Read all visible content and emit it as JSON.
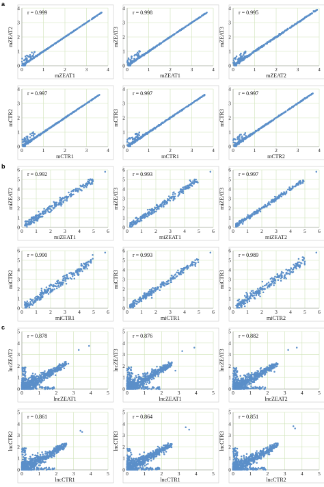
{
  "figure": {
    "panel_labels": [
      "a",
      "b",
      "c"
    ]
  },
  "colors": {
    "points": "#5b8fc9",
    "grid": "#cfe3b8",
    "axis": "#888888"
  },
  "chart_data": [
    {
      "type": "scatter",
      "group": "a",
      "xlabel": "mZEAT1",
      "ylabel": "mZEAT2",
      "r_label": "r = 0.999",
      "xlim": [
        0,
        4
      ],
      "ylim": [
        0,
        4
      ],
      "xticks": [
        0,
        1,
        2,
        3,
        4
      ],
      "yticks": [
        0,
        1,
        2,
        3,
        4
      ],
      "grid": true,
      "pattern": "m",
      "r": 0.999,
      "xmax_point": 3.7
    },
    {
      "type": "scatter",
      "group": "a",
      "xlabel": "mZEAT1",
      "ylabel": "mZEAT3",
      "r_label": "r = 0.998",
      "xlim": [
        0,
        4
      ],
      "ylim": [
        0,
        4
      ],
      "xticks": [
        0,
        1,
        2,
        3,
        4
      ],
      "yticks": [
        0,
        1,
        2,
        3,
        4
      ],
      "grid": true,
      "pattern": "m",
      "r": 0.998,
      "xmax_point": 3.7
    },
    {
      "type": "scatter",
      "group": "a",
      "xlabel": "mZEAT2",
      "ylabel": "mZEAT3",
      "r_label": "r = 0.995",
      "xlim": [
        0,
        4
      ],
      "ylim": [
        0,
        4
      ],
      "xticks": [
        0,
        1,
        2,
        3,
        4
      ],
      "yticks": [
        0,
        1,
        2,
        3,
        4
      ],
      "grid": true,
      "pattern": "m",
      "r": 0.995,
      "xmax_point": 3.9
    },
    {
      "type": "scatter",
      "group": "a",
      "xlabel": "mCTR1",
      "ylabel": "mCTR2",
      "r_label": "r = 0.997",
      "xlim": [
        0,
        4
      ],
      "ylim": [
        0,
        4
      ],
      "xticks": [
        0,
        1,
        2,
        3,
        4
      ],
      "yticks": [
        0,
        1,
        2,
        3,
        4
      ],
      "grid": true,
      "pattern": "m",
      "r": 0.997,
      "xmax_point": 3.6
    },
    {
      "type": "scatter",
      "group": "a",
      "xlabel": "mCTR1",
      "ylabel": "mCTR3",
      "r_label": "r = 0.997",
      "xlim": [
        0,
        4
      ],
      "ylim": [
        0,
        4
      ],
      "xticks": [
        0,
        1,
        2,
        3,
        4
      ],
      "yticks": [
        0,
        1,
        2,
        3,
        4
      ],
      "grid": true,
      "pattern": "m",
      "r": 0.997,
      "xmax_point": 3.6
    },
    {
      "type": "scatter",
      "group": "a",
      "xlabel": "mCTR2",
      "ylabel": "mCTR3",
      "r_label": "r = 0.997",
      "xlim": [
        0,
        4
      ],
      "ylim": [
        0,
        4
      ],
      "xticks": [
        0,
        1,
        2,
        3,
        4
      ],
      "yticks": [
        0,
        1,
        2,
        3,
        4
      ],
      "grid": true,
      "pattern": "m",
      "r": 0.997,
      "xmax_point": 3.7
    },
    {
      "type": "scatter",
      "group": "b",
      "xlabel": "miZEAT1",
      "ylabel": "miZEAT2",
      "r_label": "r = 0.992",
      "xlim": [
        0,
        6
      ],
      "ylim": [
        0,
        6
      ],
      "xticks": [
        0,
        1,
        2,
        3,
        4,
        5,
        6
      ],
      "yticks": [
        0,
        1,
        2,
        3,
        4,
        5,
        6
      ],
      "grid": true,
      "pattern": "mi",
      "r": 0.992,
      "xmax_point": 5.8
    },
    {
      "type": "scatter",
      "group": "b",
      "xlabel": "miZEAT1",
      "ylabel": "miZEAT3",
      "r_label": "r = 0.993",
      "xlim": [
        0,
        6
      ],
      "ylim": [
        0,
        6
      ],
      "xticks": [
        0,
        1,
        2,
        3,
        4,
        5,
        6
      ],
      "yticks": [
        0,
        1,
        2,
        3,
        4,
        5,
        6
      ],
      "grid": true,
      "pattern": "mi",
      "r": 0.993,
      "xmax_point": 5.8
    },
    {
      "type": "scatter",
      "group": "b",
      "xlabel": "miZEAT2",
      "ylabel": "miZEAT3",
      "r_label": "r = 0.997",
      "xlim": [
        0,
        6
      ],
      "ylim": [
        0,
        6
      ],
      "xticks": [
        0,
        1,
        2,
        3,
        4,
        5,
        6
      ],
      "yticks": [
        0,
        1,
        2,
        3,
        4,
        5,
        6
      ],
      "grid": true,
      "pattern": "mi",
      "r": 0.997,
      "xmax_point": 5.8
    },
    {
      "type": "scatter",
      "group": "b",
      "xlabel": "miCTR1",
      "ylabel": "miCTR2",
      "r_label": "r = 0.990",
      "xlim": [
        0,
        6
      ],
      "ylim": [
        0,
        6
      ],
      "xticks": [
        0,
        1,
        2,
        3,
        4,
        5,
        6
      ],
      "yticks": [
        0,
        1,
        2,
        3,
        4,
        5,
        6
      ],
      "grid": true,
      "pattern": "mi",
      "r": 0.99,
      "xmax_point": 5.8
    },
    {
      "type": "scatter",
      "group": "b",
      "xlabel": "miCTR1",
      "ylabel": "miCTR3",
      "r_label": "r = 0.993",
      "xlim": [
        0,
        6
      ],
      "ylim": [
        0,
        6
      ],
      "xticks": [
        0,
        1,
        2,
        3,
        4,
        5,
        6
      ],
      "yticks": [
        0,
        1,
        2,
        3,
        4,
        5,
        6
      ],
      "grid": true,
      "pattern": "mi",
      "r": 0.993,
      "xmax_point": 5.8
    },
    {
      "type": "scatter",
      "group": "b",
      "xlabel": "miCTR2",
      "ylabel": "miCTR3",
      "r_label": "r = 0.989",
      "xlim": [
        0,
        6
      ],
      "ylim": [
        0,
        6
      ],
      "xticks": [
        0,
        1,
        2,
        3,
        4,
        5,
        6
      ],
      "yticks": [
        0,
        1,
        2,
        3,
        4,
        5,
        6
      ],
      "grid": true,
      "pattern": "mi",
      "r": 0.989,
      "xmax_point": 5.8
    },
    {
      "type": "scatter",
      "group": "c",
      "xlabel": "lncZEAT1",
      "ylabel": "lncZEAT2",
      "r_label": "r = 0.878",
      "xlim": [
        0,
        5
      ],
      "ylim": [
        0,
        5
      ],
      "xticks": [
        0,
        1,
        2,
        3,
        4,
        5
      ],
      "yticks": [
        0,
        1,
        2,
        3,
        4,
        5
      ],
      "grid": true,
      "pattern": "lnc",
      "r": 0.878,
      "outliers": [
        [
          3.9,
          3.75
        ],
        [
          3.3,
          3.4
        ],
        [
          2.7,
          2.2
        ]
      ]
    },
    {
      "type": "scatter",
      "group": "c",
      "xlabel": "lncZEAT1",
      "ylabel": "lncZEAT3",
      "r_label": "r = 0.876",
      "xlim": [
        0,
        5
      ],
      "ylim": [
        0,
        5
      ],
      "xticks": [
        0,
        1,
        2,
        3,
        4,
        5
      ],
      "yticks": [
        0,
        1,
        2,
        3,
        4,
        5
      ],
      "grid": true,
      "pattern": "lnc",
      "r": 0.876,
      "outliers": [
        [
          3.9,
          3.6
        ],
        [
          3.2,
          3.3
        ],
        [
          2.8,
          1.6
        ]
      ]
    },
    {
      "type": "scatter",
      "group": "c",
      "xlabel": "lncZEAT2",
      "ylabel": "lncZEAT3",
      "r_label": "r = 0.882",
      "xlim": [
        0,
        5
      ],
      "ylim": [
        0,
        5
      ],
      "xticks": [
        0,
        1,
        2,
        3,
        4,
        5
      ],
      "yticks": [
        0,
        1,
        2,
        3,
        4,
        5
      ],
      "grid": true,
      "pattern": "lnc",
      "r": 0.882,
      "outliers": [
        [
          3.7,
          3.6
        ],
        [
          3.2,
          3.4
        ],
        [
          2.4,
          1.5
        ]
      ]
    },
    {
      "type": "scatter",
      "group": "c",
      "xlabel": "lncCTR1",
      "ylabel": "lncCTR2",
      "r_label": "r = 0.861",
      "xlim": [
        0,
        5
      ],
      "ylim": [
        0,
        5
      ],
      "xticks": [
        0,
        1,
        2,
        3,
        4,
        5
      ],
      "yticks": [
        0,
        1,
        2,
        3,
        4,
        5
      ],
      "grid": true,
      "pattern": "lnc",
      "r": 0.861,
      "outliers": [
        [
          3.4,
          3.4
        ],
        [
          3.5,
          3.3
        ],
        [
          2.3,
          2.2
        ]
      ]
    },
    {
      "type": "scatter",
      "group": "c",
      "xlabel": "lncCTR1",
      "ylabel": "lncCTR3",
      "r_label": "r = 0.864",
      "xlim": [
        0,
        5
      ],
      "ylim": [
        0,
        5
      ],
      "xticks": [
        0,
        1,
        2,
        3,
        4,
        5
      ],
      "yticks": [
        0,
        1,
        2,
        3,
        4,
        5
      ],
      "grid": true,
      "pattern": "lnc",
      "r": 0.864,
      "outliers": [
        [
          3.4,
          3.7
        ],
        [
          3.6,
          3.5
        ],
        [
          2.5,
          2.0
        ]
      ]
    },
    {
      "type": "scatter",
      "group": "c",
      "xlabel": "lncCTR2",
      "ylabel": "lncCTR3",
      "r_label": "r = 0.851",
      "xlim": [
        0,
        5
      ],
      "ylim": [
        0,
        5
      ],
      "xticks": [
        0,
        1,
        2,
        3,
        4,
        5
      ],
      "yticks": [
        0,
        1,
        2,
        3,
        4,
        5
      ],
      "grid": true,
      "pattern": "lnc",
      "r": 0.851,
      "outliers": [
        [
          3.5,
          3.8
        ],
        [
          3.6,
          3.6
        ],
        [
          2.4,
          2.0
        ]
      ]
    }
  ]
}
